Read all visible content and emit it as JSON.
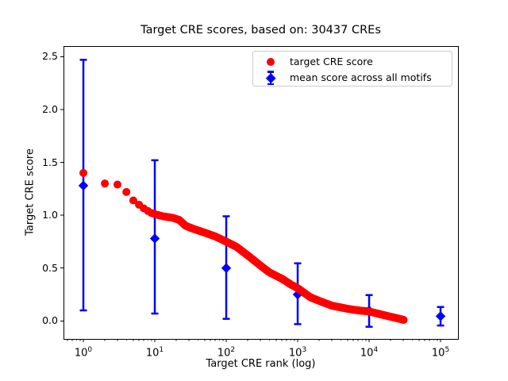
{
  "chart_data": {
    "type": "scatter",
    "title": "Target CRE scores, based on: 30437 CREs",
    "xlabel": "Target CRE rank (log)",
    "ylabel": "Target CRE score",
    "x_scale": "log10",
    "grid": false,
    "xlim_log10": [
      -0.278,
      5.244
    ],
    "ylim": [
      -0.17,
      2.6
    ],
    "x_tick_base": "10",
    "x_tick_exponents": [
      0,
      1,
      2,
      3,
      4,
      5
    ],
    "y_tick_values": [
      0.0,
      0.5,
      1.0,
      1.5,
      2.0,
      2.5
    ],
    "y_tick_labels": [
      "0.0",
      "0.5",
      "1.0",
      "1.5",
      "2.0",
      "2.5"
    ],
    "legend_position": "upper right",
    "series": [
      {
        "name": "target CRE score",
        "render": "dense-scatter-band",
        "marker": "circle",
        "color": "#ff0000",
        "n_points_stated": 30437,
        "rank_range": [
          1,
          30437
        ],
        "control_points": [
          [
            1,
            1.4
          ],
          [
            2,
            1.3
          ],
          [
            3,
            1.29
          ],
          [
            4,
            1.22
          ],
          [
            5,
            1.14
          ],
          [
            6,
            1.1
          ],
          [
            7,
            1.065
          ],
          [
            8,
            1.04
          ],
          [
            9,
            1.02
          ],
          [
            10,
            1.01
          ],
          [
            13,
            0.99
          ],
          [
            18,
            0.975
          ],
          [
            22,
            0.955
          ],
          [
            27,
            0.9
          ],
          [
            35,
            0.87
          ],
          [
            50,
            0.835
          ],
          [
            70,
            0.8
          ],
          [
            100,
            0.75
          ],
          [
            140,
            0.7
          ],
          [
            200,
            0.62
          ],
          [
            300,
            0.525
          ],
          [
            400,
            0.46
          ],
          [
            600,
            0.4
          ],
          [
            800,
            0.345
          ],
          [
            1000,
            0.31
          ],
          [
            1500,
            0.225
          ],
          [
            2000,
            0.19
          ],
          [
            3000,
            0.145
          ],
          [
            5000,
            0.115
          ],
          [
            7000,
            0.1
          ],
          [
            10000,
            0.09
          ],
          [
            15000,
            0.06
          ],
          [
            20000,
            0.04
          ],
          [
            25000,
            0.025
          ],
          [
            30437,
            0.01
          ]
        ]
      },
      {
        "name": "mean score across all motifs",
        "render": "errorbar",
        "marker": "diamond",
        "color": "#0000ff",
        "points": [
          {
            "rank": 1,
            "mean": 1.28,
            "lo": 0.1,
            "hi": 2.47
          },
          {
            "rank": 10,
            "mean": 0.78,
            "lo": 0.07,
            "hi": 1.52
          },
          {
            "rank": 100,
            "mean": 0.5,
            "lo": 0.02,
            "hi": 0.99
          },
          {
            "rank": 1000,
            "mean": 0.25,
            "lo": -0.03,
            "hi": 0.545
          },
          {
            "rank": 10000,
            "mean": 0.1,
            "lo": -0.055,
            "hi": 0.245
          },
          {
            "rank": 100000,
            "mean": 0.045,
            "lo": -0.043,
            "hi": 0.132
          }
        ]
      }
    ]
  },
  "legend": {
    "entries": [
      {
        "label": "target CRE score",
        "marker": "circle",
        "color": "#ff0000"
      },
      {
        "label": "mean score across all motifs",
        "marker": "diamond-errorbar",
        "color": "#0000ff"
      }
    ]
  },
  "colors": {
    "red": "#ff0000",
    "blue": "#0000ff",
    "axis": "#000000",
    "legend_border": "#cccccc",
    "background": "#ffffff"
  }
}
